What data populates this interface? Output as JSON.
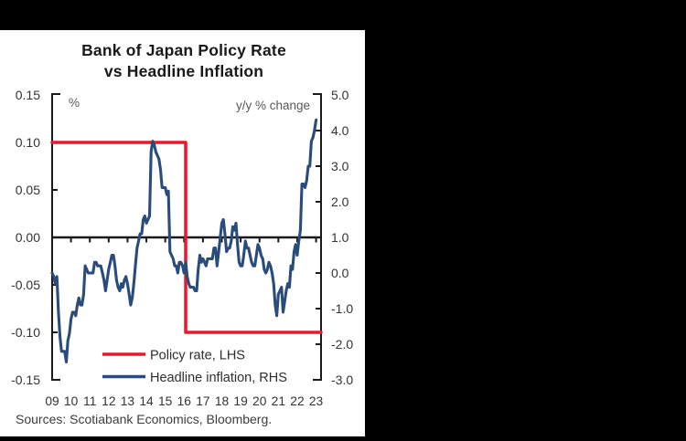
{
  "page": {
    "background": "#000000",
    "card_background": "#ffffff"
  },
  "header": {
    "title_line1": "Bank of Japan Policy Rate",
    "title_line2": "vs Headline Inflation"
  },
  "axes": {
    "left_unit": "%",
    "right_unit": "y/y % change",
    "left_tick_labels": [
      "0.15",
      "0.10",
      "0.05",
      "0.00",
      "-0.05",
      "-0.10",
      "-0.15"
    ],
    "left_tick_values": [
      0.15,
      0.1,
      0.05,
      0.0,
      -0.05,
      -0.1,
      -0.15
    ],
    "right_tick_labels": [
      "5.0",
      "4.0",
      "3.0",
      "2.0",
      "1.0",
      "0.0",
      "-1.0",
      "-2.0",
      "-3.0"
    ],
    "right_tick_values": [
      5.0,
      4.0,
      3.0,
      2.0,
      1.0,
      0.0,
      -1.0,
      -2.0,
      -3.0
    ],
    "x_tick_labels": [
      "09",
      "10",
      "11",
      "12",
      "13",
      "14",
      "15",
      "16",
      "17",
      "18",
      "19",
      "20",
      "21",
      "22",
      "23"
    ],
    "axis_color": "#1a1a1a"
  },
  "legend": [
    {
      "label": "Policy rate, LHS",
      "color": "#e9182c"
    },
    {
      "label": "Headline inflation, RHS",
      "color": "#2a4c7d"
    }
  ],
  "footer": {
    "sources": "Sources: Scotiabank Economics, Bloomberg."
  },
  "chart_data": {
    "type": "line",
    "title": "Bank of Japan Policy Rate vs Headline Inflation",
    "left_axis": {
      "label": "%",
      "range": [
        -0.15,
        0.15
      ]
    },
    "right_axis": {
      "label": "y/y % change",
      "range": [
        -3.0,
        5.0
      ]
    },
    "x_range": {
      "start": "2009-01",
      "end": "2023-02"
    },
    "grid": false,
    "legend_position": "lower-center-inside",
    "series": [
      {
        "name": "Policy rate, LHS",
        "axis": "left",
        "color": "#e9182c",
        "style": "step",
        "points": [
          {
            "date": "2009-01",
            "value": 0.1
          },
          {
            "date": "2016-02",
            "value": -0.1
          }
        ],
        "extend_to_end": true
      },
      {
        "name": "Headline inflation, RHS",
        "axis": "right",
        "color": "#2a4c7d",
        "style": "line",
        "start": "2009-01",
        "frequency": "monthly",
        "values": [
          0.0,
          -0.1,
          -0.3,
          -0.1,
          -1.1,
          -1.8,
          -2.2,
          -2.2,
          -2.2,
          -2.5,
          -1.9,
          -1.7,
          -1.3,
          -1.1,
          -1.1,
          -1.2,
          -0.9,
          -0.7,
          -0.9,
          -0.9,
          -0.6,
          0.2,
          0.1,
          0.0,
          0.0,
          0.0,
          0.0,
          0.3,
          0.3,
          0.2,
          0.2,
          0.2,
          0.0,
          -0.2,
          -0.5,
          -0.2,
          0.1,
          0.3,
          0.5,
          0.5,
          0.2,
          -0.2,
          -0.4,
          -0.5,
          -0.3,
          -0.4,
          -0.2,
          -0.1,
          -0.3,
          -0.6,
          -0.9,
          -0.7,
          -0.3,
          0.2,
          0.7,
          0.9,
          1.1,
          1.1,
          1.5,
          1.6,
          1.4,
          1.5,
          1.6,
          3.4,
          3.7,
          3.6,
          3.4,
          3.3,
          3.2,
          2.9,
          2.4,
          2.4,
          2.4,
          2.2,
          2.3,
          0.6,
          0.5,
          0.4,
          0.2,
          0.2,
          0.0,
          0.3,
          0.3,
          0.2,
          0.0,
          0.3,
          -0.1,
          -0.3,
          -0.4,
          -0.4,
          -0.4,
          -0.5,
          -0.5,
          0.1,
          0.5,
          0.3,
          0.4,
          0.3,
          0.2,
          0.4,
          0.4,
          0.4,
          0.4,
          0.7,
          0.7,
          0.2,
          0.6,
          1.0,
          1.4,
          1.5,
          1.1,
          0.6,
          0.7,
          0.7,
          0.9,
          1.3,
          1.2,
          1.4,
          0.8,
          0.3,
          0.2,
          0.2,
          0.5,
          0.9,
          0.7,
          0.7,
          0.5,
          0.3,
          0.2,
          0.2,
          0.5,
          0.8,
          0.7,
          0.5,
          0.4,
          0.1,
          0.0,
          0.1,
          0.3,
          0.2,
          0.0,
          -0.3,
          -0.9,
          -1.2,
          -0.6,
          -0.5,
          -0.4,
          -1.1,
          -0.8,
          -0.5,
          -0.3,
          -0.4,
          0.2,
          0.1,
          0.6,
          0.8,
          0.5,
          0.9,
          1.2,
          2.5,
          2.5,
          2.4,
          2.6,
          3.0,
          3.0,
          3.7,
          3.8,
          4.0,
          4.3
        ]
      }
    ]
  }
}
